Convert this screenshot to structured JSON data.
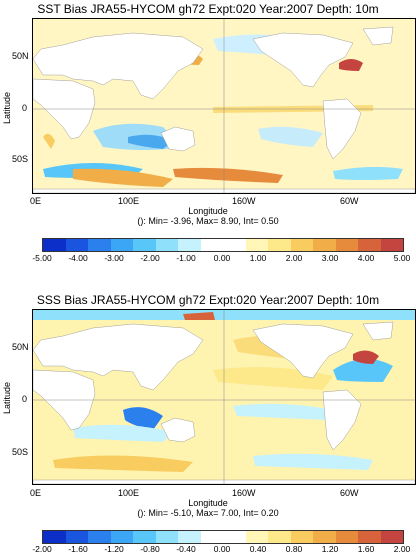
{
  "panels": [
    {
      "title": "SST Bias JRA55-HYCOM gh72 Expt:020 Year:2007 Depth:  10m",
      "ylabel": "Latitude",
      "xlabel": "Longitude",
      "lat_ticks": [
        "50N",
        "0",
        "50S"
      ],
      "lon_ticks": [
        "0E",
        "100E",
        "160W",
        "60W"
      ],
      "stats": "(): Min= -3.96, Max= 8.90, Int= 0.50",
      "colorbar_ticks": [
        "-5.00",
        "-4.00",
        "-3.00",
        "-2.00",
        "-1.00",
        "0.00",
        "1.00",
        "2.00",
        "3.00",
        "4.00",
        "5.00"
      ]
    },
    {
      "title": "SSS Bias JRA55-HYCOM gh72 Expt:020 Year:2007 Depth:  10m",
      "ylabel": "Latitude",
      "xlabel": "Longitude",
      "lat_ticks": [
        "50N",
        "0",
        "50S"
      ],
      "lon_ticks": [
        "0E",
        "100E",
        "160W",
        "60W"
      ],
      "stats": "(): Min= -5.10, Max= 7.00, Int= 0.20",
      "colorbar_ticks": [
        "-2.00",
        "-1.60",
        "-1.20",
        "-0.80",
        "-0.40",
        "0.00",
        "0.40",
        "0.80",
        "1.20",
        "1.60",
        "2.00"
      ]
    }
  ],
  "colorbar_colors": [
    "#0b2fc8",
    "#1a55e0",
    "#2b80ee",
    "#3aa6f5",
    "#58c6f8",
    "#8fe0fb",
    "#c6f2fd",
    "#ffffff",
    "#ffffff",
    "#fff6b8",
    "#fde88a",
    "#f8cc5e",
    "#f0ad48",
    "#e68a3c",
    "#d6633a",
    "#c44440"
  ],
  "palette": {
    "land": "#ffffff",
    "ocean_pos_light": "#fff3b0",
    "ocean_pos_mid": "#fbdc7a",
    "ocean_pos_strong": "#ea8a3c",
    "ocean_pos_extreme": "#c4403c",
    "ocean_neg_light": "#cdefff",
    "ocean_neg_mid": "#7fd2f5",
    "ocean_neg_strong": "#2b80ee"
  }
}
